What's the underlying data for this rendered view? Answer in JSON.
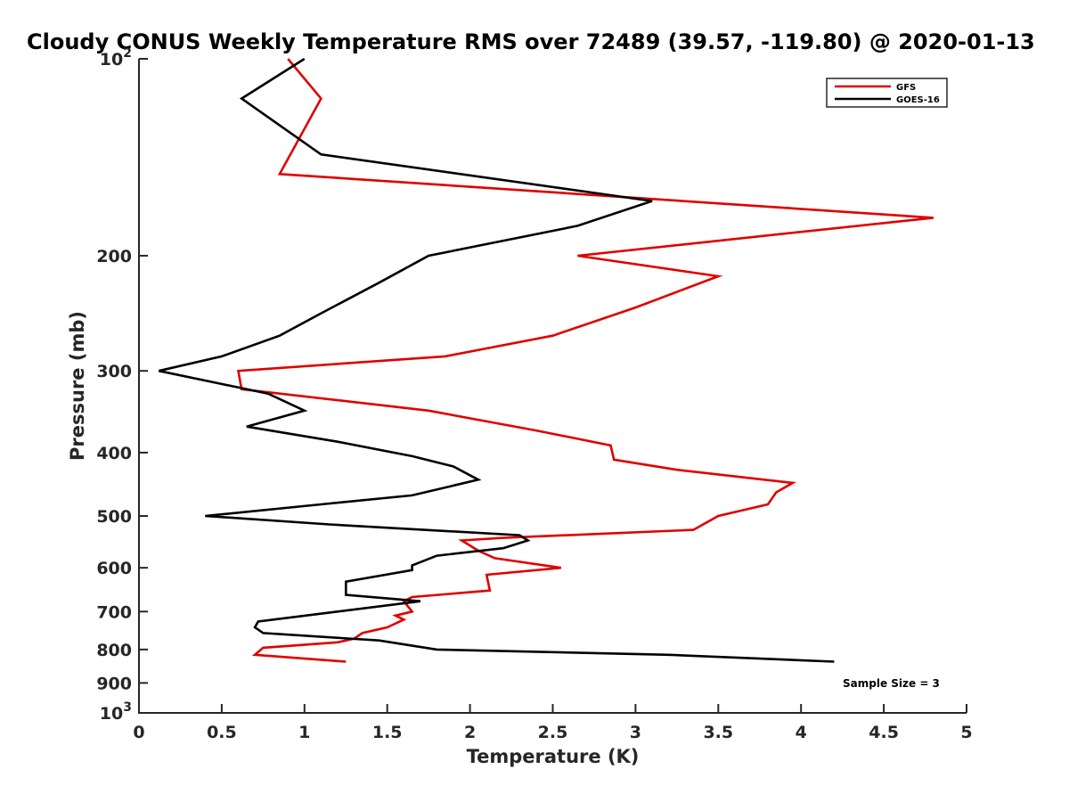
{
  "chart_data": {
    "type": "line",
    "title": "Cloudy CONUS Weekly Temperature RMS over 72489 (39.57, -119.80) @ 2020-01-13",
    "xlabel": "Temperature (K)",
    "ylabel": "Pressure (mb)",
    "xlim": [
      0,
      5
    ],
    "ylim": [
      100,
      1000
    ],
    "y_scale": "log",
    "y_reversed": true,
    "x_ticks": [
      "0",
      "0.5",
      "1",
      "1.5",
      "2",
      "2.5",
      "3",
      "3.5",
      "4",
      "4.5",
      "5"
    ],
    "x_tick_values": [
      0,
      0.5,
      1,
      1.5,
      2,
      2.5,
      3,
      3.5,
      4,
      4.5,
      5
    ],
    "y_ticks": [
      {
        "value": 100,
        "base": "10",
        "exp": "2"
      },
      {
        "value": 200,
        "base": "200",
        "exp": ""
      },
      {
        "value": 300,
        "base": "300",
        "exp": ""
      },
      {
        "value": 400,
        "base": "400",
        "exp": ""
      },
      {
        "value": 500,
        "base": "500",
        "exp": ""
      },
      {
        "value": 600,
        "base": "600",
        "exp": ""
      },
      {
        "value": 700,
        "base": "700",
        "exp": ""
      },
      {
        "value": 800,
        "base": "800",
        "exp": ""
      },
      {
        "value": 900,
        "base": "900",
        "exp": ""
      },
      {
        "value": 1000,
        "base": "10",
        "exp": "3"
      }
    ],
    "grid": false,
    "legend_position": "top-right",
    "annotation": "Sample Size = 3",
    "series": [
      {
        "name": "GFS",
        "color": "#e00000",
        "points": [
          [
            0.9,
            100
          ],
          [
            1.1,
            115
          ],
          [
            0.85,
            150
          ],
          [
            4.8,
            175
          ],
          [
            2.65,
            200
          ],
          [
            3.5,
            215
          ],
          [
            3.0,
            240
          ],
          [
            2.5,
            265
          ],
          [
            1.85,
            285
          ],
          [
            0.6,
            300
          ],
          [
            0.62,
            320
          ],
          [
            1.75,
            345
          ],
          [
            2.4,
            370
          ],
          [
            2.85,
            390
          ],
          [
            2.87,
            410
          ],
          [
            3.25,
            425
          ],
          [
            3.95,
            445
          ],
          [
            3.85,
            460
          ],
          [
            3.8,
            480
          ],
          [
            3.5,
            500
          ],
          [
            3.35,
            525
          ],
          [
            2.2,
            540
          ],
          [
            1.95,
            545
          ],
          [
            2.05,
            565
          ],
          [
            2.15,
            580
          ],
          [
            2.55,
            600
          ],
          [
            2.1,
            615
          ],
          [
            2.12,
            650
          ],
          [
            1.65,
            665
          ],
          [
            1.6,
            675
          ],
          [
            1.65,
            700
          ],
          [
            1.55,
            710
          ],
          [
            1.6,
            720
          ],
          [
            1.5,
            740
          ],
          [
            1.35,
            755
          ],
          [
            1.3,
            770
          ],
          [
            1.2,
            780
          ],
          [
            0.75,
            795
          ],
          [
            0.7,
            815
          ],
          [
            1.25,
            835
          ]
        ]
      },
      {
        "name": "GOES-16",
        "color": "#000000",
        "points": [
          [
            1.0,
            100
          ],
          [
            0.62,
            115
          ],
          [
            1.1,
            140
          ],
          [
            3.1,
            165
          ],
          [
            2.65,
            180
          ],
          [
            1.75,
            200
          ],
          [
            1.45,
            220
          ],
          [
            1.1,
            245
          ],
          [
            0.85,
            265
          ],
          [
            0.5,
            285
          ],
          [
            0.12,
            300
          ],
          [
            0.78,
            325
          ],
          [
            1.0,
            345
          ],
          [
            0.65,
            365
          ],
          [
            1.2,
            385
          ],
          [
            1.65,
            405
          ],
          [
            1.9,
            420
          ],
          [
            2.05,
            440
          ],
          [
            1.65,
            465
          ],
          [
            1.1,
            480
          ],
          [
            0.4,
            500
          ],
          [
            1.15,
            515
          ],
          [
            2.3,
            535
          ],
          [
            2.35,
            545
          ],
          [
            2.2,
            560
          ],
          [
            1.8,
            575
          ],
          [
            1.65,
            595
          ],
          [
            1.65,
            605
          ],
          [
            1.25,
            630
          ],
          [
            1.25,
            660
          ],
          [
            1.7,
            675
          ],
          [
            1.2,
            700
          ],
          [
            0.72,
            725
          ],
          [
            0.7,
            740
          ],
          [
            0.75,
            755
          ],
          [
            1.45,
            775
          ],
          [
            1.8,
            800
          ],
          [
            3.2,
            815
          ],
          [
            4.2,
            835
          ]
        ]
      }
    ]
  }
}
